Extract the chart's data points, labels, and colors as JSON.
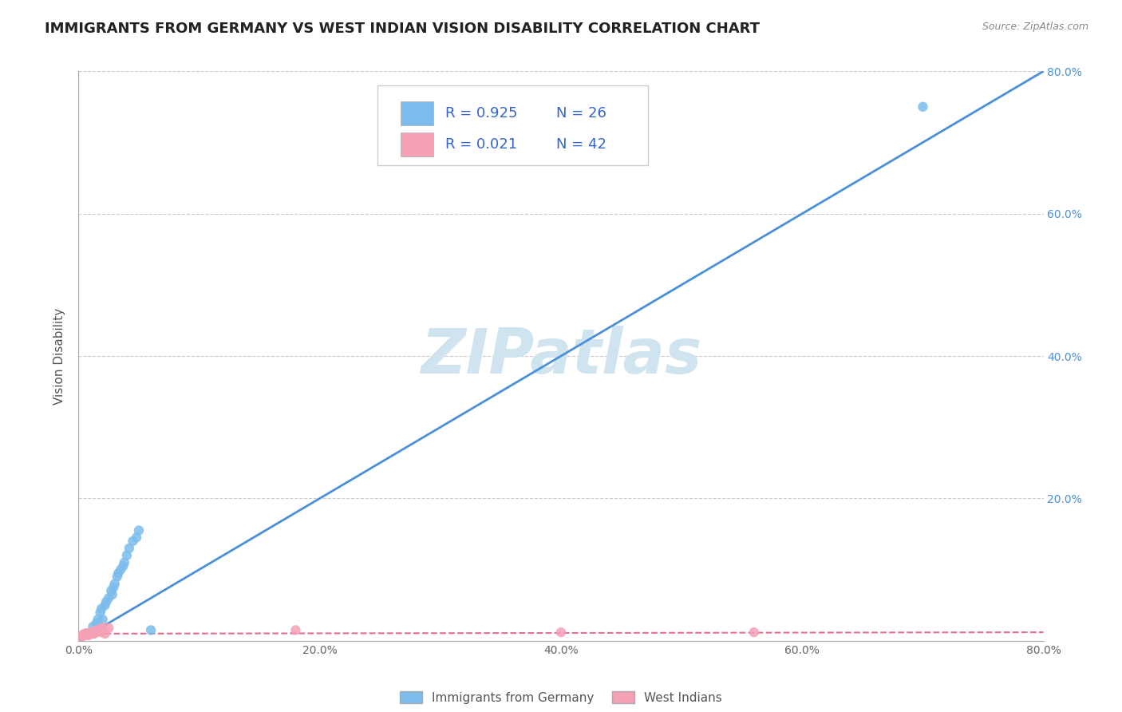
{
  "title": "IMMIGRANTS FROM GERMANY VS WEST INDIAN VISION DISABILITY CORRELATION CHART",
  "source": "Source: ZipAtlas.com",
  "ylabel": "Vision Disability",
  "xlim": [
    0.0,
    0.8
  ],
  "ylim": [
    0.0,
    0.8
  ],
  "xtick_labels": [
    "0.0%",
    "20.0%",
    "40.0%",
    "60.0%",
    "80.0%"
  ],
  "xtick_vals": [
    0.0,
    0.2,
    0.4,
    0.6,
    0.8
  ],
  "ytick_labels": [
    "20.0%",
    "40.0%",
    "60.0%",
    "80.0%"
  ],
  "ytick_vals": [
    0.2,
    0.4,
    0.6,
    0.8
  ],
  "blue_scatter_x": [
    0.01,
    0.018,
    0.022,
    0.025,
    0.028,
    0.03,
    0.032,
    0.035,
    0.038,
    0.04,
    0.042,
    0.045,
    0.048,
    0.05,
    0.02,
    0.027,
    0.033,
    0.037,
    0.015,
    0.023,
    0.029,
    0.019,
    0.012,
    0.016,
    0.7,
    0.06
  ],
  "blue_scatter_y": [
    0.012,
    0.04,
    0.05,
    0.06,
    0.065,
    0.08,
    0.09,
    0.1,
    0.11,
    0.12,
    0.13,
    0.14,
    0.145,
    0.155,
    0.03,
    0.07,
    0.095,
    0.105,
    0.025,
    0.055,
    0.075,
    0.045,
    0.02,
    0.03,
    0.75,
    0.015
  ],
  "pink_scatter_x": [
    0.003,
    0.004,
    0.005,
    0.006,
    0.007,
    0.008,
    0.009,
    0.01,
    0.011,
    0.012,
    0.013,
    0.014,
    0.015,
    0.016,
    0.017,
    0.018,
    0.019,
    0.02,
    0.022,
    0.025,
    0.005,
    0.007,
    0.008,
    0.009,
    0.01,
    0.011,
    0.012,
    0.014,
    0.006,
    0.003,
    0.004,
    0.007,
    0.016,
    0.008,
    0.01,
    0.015,
    0.02,
    0.006,
    0.18,
    0.4,
    0.56,
    0.002
  ],
  "pink_scatter_y": [
    0.008,
    0.007,
    0.01,
    0.01,
    0.01,
    0.008,
    0.01,
    0.012,
    0.012,
    0.012,
    0.01,
    0.012,
    0.015,
    0.015,
    0.015,
    0.015,
    0.012,
    0.018,
    0.01,
    0.018,
    0.008,
    0.01,
    0.008,
    0.01,
    0.01,
    0.012,
    0.01,
    0.012,
    0.01,
    0.007,
    0.007,
    0.01,
    0.015,
    0.008,
    0.01,
    0.012,
    0.018,
    0.01,
    0.015,
    0.012,
    0.012,
    0.005
  ],
  "blue_line_x": [
    0.0,
    0.8
  ],
  "blue_line_y": [
    0.0,
    0.8
  ],
  "pink_line_x": [
    0.0,
    0.8
  ],
  "pink_line_y": [
    0.01,
    0.012
  ],
  "blue_color": "#7bbcec",
  "blue_line_color": "#4a90d9",
  "pink_color": "#f4a0b5",
  "pink_line_color": "#e07090",
  "R_blue": 0.925,
  "N_blue": 26,
  "R_pink": 0.021,
  "N_pink": 42,
  "watermark": "ZIPatlas",
  "watermark_color": "#d0e4f0",
  "legend_label_blue": "Immigrants from Germany",
  "legend_label_pink": "West Indians",
  "background_color": "#ffffff",
  "grid_color": "#cccccc",
  "title_fontsize": 13,
  "tick_color_right": "#4a90d9",
  "tick_color_bottom": "#666666"
}
